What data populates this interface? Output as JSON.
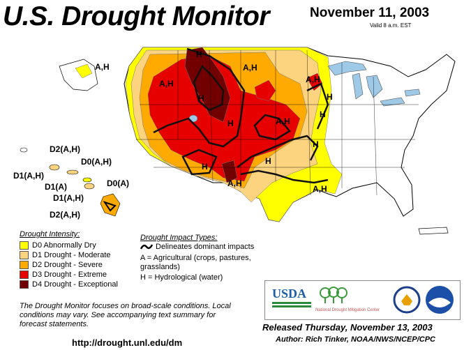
{
  "header": {
    "title": "U.S. Drought Monitor",
    "date": "November 11, 2003",
    "valid": "Valid 8 a.m. EST"
  },
  "map": {
    "impact_labels": [
      "A,H",
      "H",
      "A,H",
      "A,H",
      "H",
      "A,H",
      "H",
      "H",
      "A,H",
      "H",
      "H",
      "H",
      "H",
      "A,H",
      "A,H"
    ],
    "hawaii_labels": [
      "D2(A,H)",
      "D0(A,H)",
      "D1(A,H)",
      "D1(A)",
      "D1(A,H)",
      "D0(A)",
      "D2(A,H)"
    ],
    "colors": {
      "D0": "#ffff00",
      "D1": "#fcd37f",
      "D2": "#ffaa00",
      "D3": "#e60000",
      "D4": "#730000",
      "water": "#9ecae8",
      "land": "#ffffff"
    }
  },
  "legend_intensity": {
    "title": "Drought Intensity:",
    "items": [
      {
        "label": "D0 Abnormally Dry",
        "color": "#ffff00"
      },
      {
        "label": "D1 Drought - Moderate",
        "color": "#fcd37f"
      },
      {
        "label": "D2 Drought - Severe",
        "color": "#ffaa00"
      },
      {
        "label": "D3 Drought - Extreme",
        "color": "#e60000"
      },
      {
        "label": "D4 Drought - Exceptional",
        "color": "#730000"
      }
    ]
  },
  "legend_impact": {
    "title": "Drought Impact Types:",
    "line": "Delineates dominant impacts",
    "a": "A = Agricultural (crops, pastures, grasslands)",
    "h": "H = Hydrological (water)"
  },
  "disclaimer": "The Drought Monitor focuses on broad-scale conditions. Local conditions may vary.  See accompanying text summary for forecast statements.",
  "url": "http://drought.unl.edu/dm",
  "released": "Released Thursday, November 13, 2003",
  "author": "Author: Rich Tinker, NOAA/NWS/NCEP/CPC",
  "logos": {
    "usda": "USDA",
    "ndmc": "National Drought Mitigation Center",
    "noaa": "NOAA"
  }
}
